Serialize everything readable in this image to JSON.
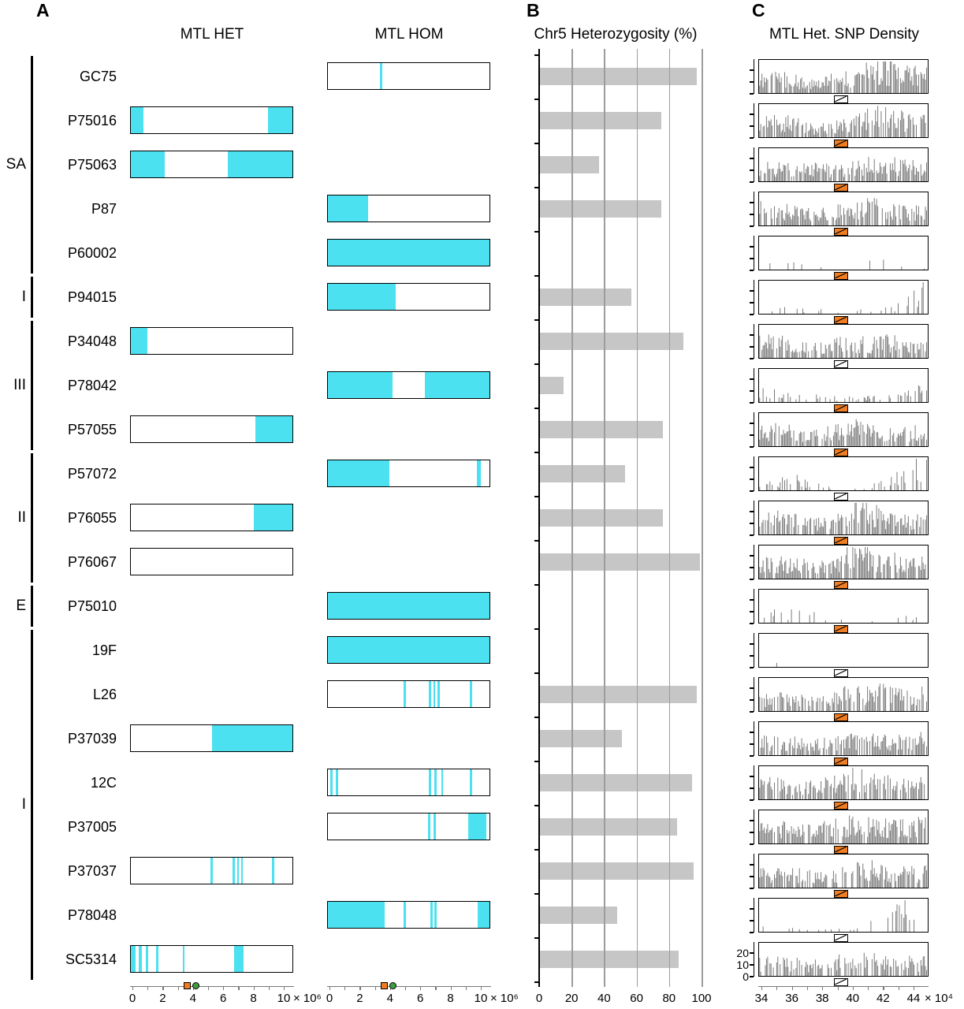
{
  "panels": {
    "a": "A",
    "b": "B",
    "c": "C"
  },
  "colors": {
    "loh_cyan": "#4be1f0",
    "bar_gray": "#c6c6c6",
    "hist_gray": "#7b7b7b",
    "marker_orange": "#f07d21",
    "marker_green": "#3f9e3f",
    "grid_gray": "#9c9c9c",
    "axis_black": "#000000"
  },
  "groups": [
    {
      "label": "SA",
      "from": 0,
      "to": 4
    },
    {
      "label": "I",
      "from": 5,
      "to": 5
    },
    {
      "label": "III",
      "from": 6,
      "to": 8
    },
    {
      "label": "II",
      "from": 9,
      "to": 11
    },
    {
      "label": "E",
      "from": 12,
      "to": 12
    },
    {
      "label": "I",
      "from": 13,
      "to": 20
    }
  ],
  "chart_data": [
    {
      "id": "panel_a_chromosome_maps",
      "type": "heatmap",
      "title_het": "MTL HET",
      "title_hom": "MTL HOM",
      "x_axis": {
        "min": 0,
        "max": 10,
        "ticks": [
          0,
          2,
          4,
          6,
          8,
          10
        ],
        "scale": "× 10⁶"
      },
      "markers": {
        "orange_square_value": 3.6,
        "green_circle_value": 4.2
      },
      "rows": [
        {
          "strain": "GC75",
          "column": "hom",
          "loh_segments": [
            [
              0.32,
              0.335
            ]
          ]
        },
        {
          "strain": "P75016",
          "column": "het",
          "loh_segments": [
            [
              0,
              0.08
            ],
            [
              0.85,
              1
            ]
          ]
        },
        {
          "strain": "P75063",
          "column": "het",
          "loh_segments": [
            [
              0,
              0.21
            ],
            [
              0.6,
              1
            ]
          ]
        },
        {
          "strain": "P87",
          "column": "hom",
          "loh_segments": [
            [
              0,
              0.25
            ]
          ]
        },
        {
          "strain": "P60002",
          "column": "hom",
          "loh_segments": [
            [
              0,
              1
            ]
          ]
        },
        {
          "strain": "P94015",
          "column": "hom",
          "loh_segments": [
            [
              0,
              0.42
            ]
          ]
        },
        {
          "strain": "P34048",
          "column": "het",
          "loh_segments": [
            [
              0,
              0.1
            ]
          ]
        },
        {
          "strain": "P78042",
          "column": "hom",
          "loh_segments": [
            [
              0,
              0.4
            ],
            [
              0.6,
              1
            ]
          ]
        },
        {
          "strain": "P57055",
          "column": "het",
          "loh_segments": [
            [
              0.77,
              1
            ]
          ]
        },
        {
          "strain": "P57072",
          "column": "hom",
          "loh_segments": [
            [
              0,
              0.38
            ],
            [
              0.92,
              0.945
            ]
          ]
        },
        {
          "strain": "P76055",
          "column": "het",
          "loh_segments": [
            [
              0.76,
              1
            ]
          ]
        },
        {
          "strain": "P76067",
          "column": "het",
          "loh_segments": []
        },
        {
          "strain": "P75010",
          "column": "hom",
          "loh_segments": [
            [
              0,
              1
            ]
          ]
        },
        {
          "strain": "19F",
          "column": "hom",
          "loh_segments": [
            [
              0,
              1
            ]
          ]
        },
        {
          "strain": "L26",
          "column": "hom",
          "loh_segments": [
            [
              0.47,
              0.485
            ],
            [
              0.625,
              0.64
            ],
            [
              0.652,
              0.664
            ],
            [
              0.678,
              0.69
            ],
            [
              0.88,
              0.892
            ]
          ]
        },
        {
          "strain": "P37039",
          "column": "het",
          "loh_segments": [
            [
              0.5,
              1
            ]
          ]
        },
        {
          "strain": "12C",
          "column": "hom",
          "loh_segments": [
            [
              0.015,
              0.03
            ],
            [
              0.05,
              0.065
            ],
            [
              0.625,
              0.64
            ],
            [
              0.66,
              0.675
            ],
            [
              0.7,
              0.712
            ],
            [
              0.88,
              0.892
            ]
          ]
        },
        {
          "strain": "P37005",
          "column": "hom",
          "loh_segments": [
            [
              0.62,
              0.635
            ],
            [
              0.652,
              0.667
            ],
            [
              0.87,
              0.98
            ]
          ]
        },
        {
          "strain": "P37037",
          "column": "het",
          "loh_segments": [
            [
              0.49,
              0.505
            ],
            [
              0.628,
              0.643
            ],
            [
              0.657,
              0.67
            ],
            [
              0.684,
              0.695
            ],
            [
              0.875,
              0.888
            ]
          ]
        },
        {
          "strain": "P78048",
          "column": "hom",
          "loh_segments": [
            [
              0,
              0.35
            ],
            [
              0.47,
              0.485
            ],
            [
              0.632,
              0.647
            ],
            [
              0.66,
              0.672
            ],
            [
              0.925,
              1
            ]
          ]
        },
        {
          "strain": "SC5314",
          "column": "het",
          "loh_segments": [
            [
              0,
              0.03
            ],
            [
              0.05,
              0.067
            ],
            [
              0.093,
              0.108
            ],
            [
              0.157,
              0.17
            ],
            [
              0.322,
              0.333
            ],
            [
              0.637,
              0.7
            ]
          ]
        }
      ]
    },
    {
      "id": "panel_b_chr5_heterozygosity",
      "type": "bar",
      "orientation": "horizontal",
      "title": "Chr5 Heterozygosity (%)",
      "categories": [
        "GC75",
        "P75016",
        "P75063",
        "P87",
        "P60002",
        "P94015",
        "P34048",
        "P78042",
        "P57055",
        "P57072",
        "P76055",
        "P76067",
        "P75010",
        "19F",
        "L26",
        "P37039",
        "12C",
        "P37005",
        "P37037",
        "P78048",
        "SC5314"
      ],
      "values": [
        97,
        75,
        37,
        75,
        0,
        57,
        89,
        15,
        76,
        53,
        76,
        99,
        0,
        0,
        97,
        51,
        94,
        85,
        95,
        48,
        86
      ],
      "xlim": [
        0,
        100
      ],
      "x_ticks": [
        0,
        20,
        40,
        60,
        80,
        100
      ],
      "grid": true
    },
    {
      "id": "panel_c_mtl_het_snp_density",
      "type": "bar",
      "title": "MTL Het. SNP Density",
      "x_axis": {
        "min": 34,
        "max": 44,
        "ticks": [
          34,
          36,
          38,
          40,
          42,
          44
        ],
        "scale": "× 10⁴"
      },
      "y_axis": {
        "ticks": [
          20,
          10,
          0
        ]
      },
      "rows": [
        {
          "strain": "GC75",
          "seed": 101,
          "fill": 0.8,
          "envelope": [
            0.55,
            0.6,
            0.45,
            0.35,
            0.5,
            0.55,
            0.9,
            0.85,
            0.7,
            0.65
          ],
          "mtl_marker": "white"
        },
        {
          "strain": "P75016",
          "seed": 102,
          "fill": 0.75,
          "envelope": [
            0.5,
            0.6,
            0.5,
            0.3,
            0.4,
            0.5,
            0.85,
            0.8,
            0.6,
            0.7
          ],
          "mtl_marker": "orange"
        },
        {
          "strain": "P75063",
          "seed": 103,
          "fill": 0.8,
          "envelope": [
            0.6,
            0.5,
            0.45,
            0.5,
            0.4,
            0.5,
            0.7,
            0.6,
            0.55,
            0.6
          ],
          "mtl_marker": "orange"
        },
        {
          "strain": "P87",
          "seed": 104,
          "fill": 0.8,
          "envelope": [
            0.6,
            0.55,
            0.5,
            0.4,
            0.5,
            0.6,
            0.7,
            0.6,
            0.5,
            0.6
          ],
          "mtl_marker": "orange"
        },
        {
          "strain": "P60002",
          "seed": 105,
          "fill": 0.12,
          "envelope": [
            0.25,
            0.3,
            0.25,
            0.2,
            0.15,
            0.1,
            0.5,
            0.12,
            0.1,
            0.1
          ],
          "mtl_marker": "orange"
        },
        {
          "strain": "P94015",
          "seed": 106,
          "fill": 0.3,
          "envelope": [
            0.2,
            0.2,
            0.15,
            0.15,
            0.1,
            0.1,
            0.12,
            0.2,
            0.5,
            0.95
          ],
          "mtl_marker": "orange"
        },
        {
          "strain": "P34048",
          "seed": 107,
          "fill": 0.7,
          "envelope": [
            0.55,
            0.6,
            0.5,
            0.4,
            0.5,
            0.6,
            0.5,
            0.6,
            0.45,
            0.5
          ],
          "mtl_marker": "white"
        },
        {
          "strain": "P78042",
          "seed": 108,
          "fill": 0.35,
          "envelope": [
            0.5,
            0.3,
            0.2,
            0.2,
            0.15,
            0.15,
            0.2,
            0.2,
            0.3,
            0.6
          ],
          "mtl_marker": "orange"
        },
        {
          "strain": "P57055",
          "seed": 109,
          "fill": 0.75,
          "envelope": [
            0.5,
            0.6,
            0.5,
            0.4,
            0.55,
            0.7,
            0.6,
            0.5,
            0.5,
            0.6
          ],
          "mtl_marker": "orange"
        },
        {
          "strain": "P57072",
          "seed": 110,
          "fill": 0.35,
          "envelope": [
            0.2,
            0.3,
            0.4,
            0.2,
            0.15,
            0.1,
            0.15,
            0.3,
            0.8,
            0.95
          ],
          "mtl_marker": "white"
        },
        {
          "strain": "P76055",
          "seed": 111,
          "fill": 0.75,
          "envelope": [
            0.5,
            0.6,
            0.5,
            0.4,
            0.5,
            0.9,
            0.8,
            0.6,
            0.5,
            0.6
          ],
          "mtl_marker": "orange"
        },
        {
          "strain": "P76067",
          "seed": 112,
          "fill": 0.75,
          "envelope": [
            0.5,
            0.6,
            0.5,
            0.5,
            0.5,
            0.95,
            0.85,
            0.7,
            0.5,
            0.6
          ],
          "mtl_marker": "orange"
        },
        {
          "strain": "P75010",
          "seed": 113,
          "fill": 0.1,
          "envelope": [
            0.3,
            0.4,
            0.3,
            0.4,
            0.2,
            0.1,
            0.1,
            0.1,
            0.2,
            0.1
          ],
          "mtl_marker": "orange"
        },
        {
          "strain": "19F",
          "seed": 114,
          "fill": 0.06,
          "envelope": [
            0.95,
            0.3,
            0.05,
            0.02,
            0.02,
            0.02,
            0.02,
            0.02,
            0.02,
            0.02
          ],
          "mtl_marker": "white"
        },
        {
          "strain": "L26",
          "seed": 115,
          "fill": 0.75,
          "envelope": [
            0.45,
            0.5,
            0.4,
            0.4,
            0.5,
            0.8,
            0.7,
            0.65,
            0.6,
            0.6
          ],
          "mtl_marker": "orange"
        },
        {
          "strain": "P37039",
          "seed": 116,
          "fill": 0.7,
          "envelope": [
            0.5,
            0.5,
            0.45,
            0.4,
            0.5,
            0.6,
            0.55,
            0.5,
            0.5,
            0.6
          ],
          "mtl_marker": "orange"
        },
        {
          "strain": "12C",
          "seed": 117,
          "fill": 0.75,
          "envelope": [
            0.5,
            0.6,
            0.5,
            0.5,
            0.6,
            0.9,
            0.8,
            0.6,
            0.5,
            0.6
          ],
          "mtl_marker": "orange"
        },
        {
          "strain": "P37005",
          "seed": 118,
          "fill": 0.8,
          "envelope": [
            0.5,
            0.6,
            0.5,
            0.5,
            0.6,
            0.7,
            0.7,
            0.6,
            0.6,
            0.7
          ],
          "mtl_marker": "orange"
        },
        {
          "strain": "P37037",
          "seed": 119,
          "fill": 0.75,
          "envelope": [
            0.5,
            0.5,
            0.5,
            0.4,
            0.5,
            0.6,
            0.7,
            0.6,
            0.55,
            0.6
          ],
          "mtl_marker": "orange"
        },
        {
          "strain": "P78048",
          "seed": 120,
          "fill": 0.3,
          "envelope": [
            0.15,
            0.1,
            0.1,
            0.1,
            0.1,
            0.12,
            0.3,
            0.6,
            0.95,
            0.8
          ],
          "mtl_marker": "white"
        },
        {
          "strain": "SC5314",
          "seed": 121,
          "fill": 0.7,
          "envelope": [
            0.5,
            0.5,
            0.45,
            0.4,
            0.5,
            0.6,
            0.6,
            0.55,
            0.5,
            0.5
          ],
          "mtl_marker": "white"
        }
      ]
    }
  ]
}
